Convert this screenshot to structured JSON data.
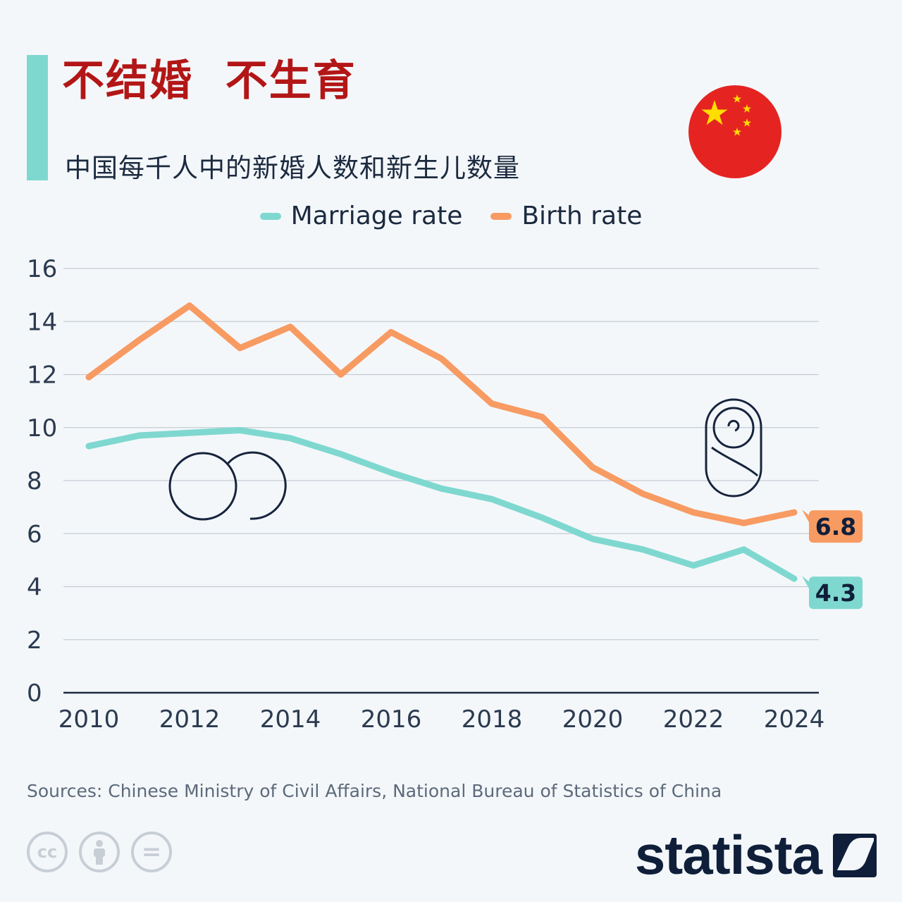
{
  "header": {
    "title": "不结婚  不生育",
    "subtitle": "中国每千人中的新婚人数和新生儿数量"
  },
  "legend": {
    "marriage_label": "Marriage rate",
    "birth_label": "Birth rate"
  },
  "colors": {
    "marriage": "#7fd8d0",
    "birth": "#f79b63",
    "title": "#b31616",
    "flag_red": "#e52421",
    "flag_star": "#ffde00"
  },
  "chart_data": {
    "type": "line",
    "title": "中国每千人中的新婚人数和新生儿数量",
    "xlabel": "",
    "ylabel": "",
    "x": [
      2010,
      2011,
      2012,
      2013,
      2014,
      2015,
      2016,
      2017,
      2018,
      2019,
      2020,
      2021,
      2022,
      2023,
      2024
    ],
    "series": [
      {
        "name": "Marriage rate",
        "values": [
          9.3,
          9.7,
          9.8,
          9.9,
          9.6,
          9.0,
          8.3,
          7.7,
          7.3,
          6.6,
          5.8,
          5.4,
          4.8,
          5.4,
          4.3
        ],
        "end_label": "4.3"
      },
      {
        "name": "Birth rate",
        "values": [
          11.9,
          13.3,
          14.6,
          13.0,
          13.8,
          12.0,
          13.6,
          12.6,
          10.9,
          10.4,
          8.5,
          7.5,
          6.8,
          6.4,
          6.8
        ],
        "end_label": "6.8"
      }
    ],
    "ylim": [
      0,
      16
    ],
    "yticks": [
      0,
      2,
      4,
      6,
      8,
      10,
      12,
      14,
      16
    ],
    "xticks": [
      2010,
      2012,
      2014,
      2016,
      2018,
      2020,
      2022,
      2024
    ],
    "grid": true,
    "legend_position": "top-center"
  },
  "footer": {
    "source": "Sources: Chinese Ministry of Civil Affairs, National Bureau of Statistics of China",
    "brand": "statista",
    "license_icons": [
      "cc-icon",
      "attribution-icon",
      "no-derivatives-icon"
    ],
    "cc_text": "cc",
    "nd_text": "="
  }
}
